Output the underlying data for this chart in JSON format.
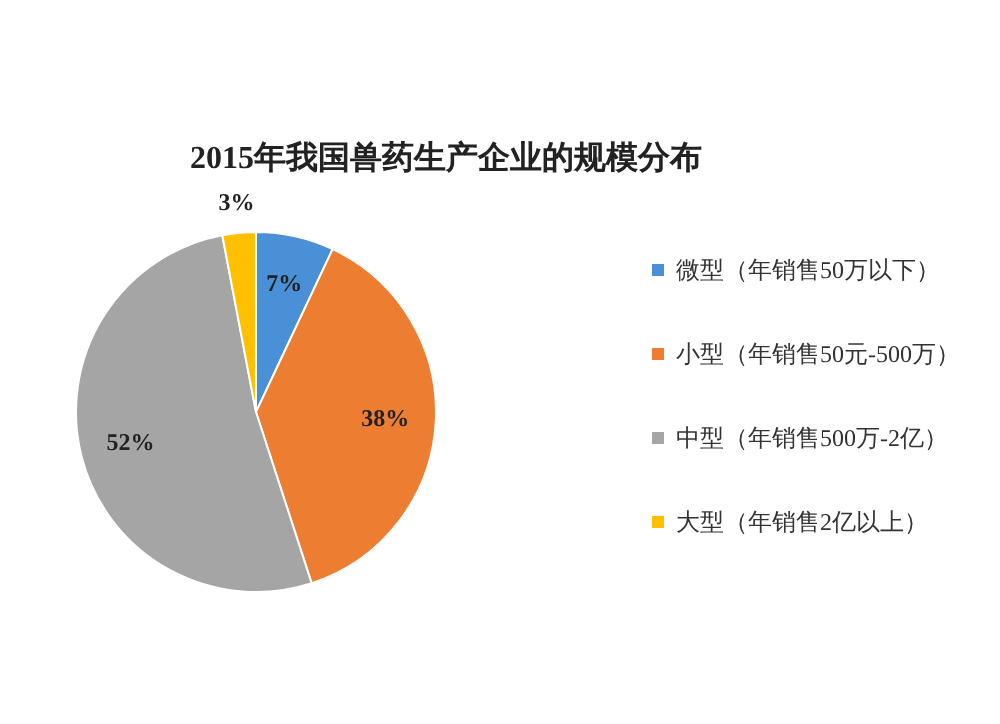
{
  "chart_data": {
    "type": "pie",
    "title": "2015年我国兽药生产企业的规模分布",
    "categories": [
      "微型（年销售50万以下）",
      "小型（年销售50元-500万）",
      "中型（年销售500万-2亿）",
      "大型（年销售2亿以上）"
    ],
    "values": [
      7,
      38,
      52,
      3
    ],
    "value_labels": [
      "7%",
      "38%",
      "52%",
      "3%"
    ],
    "colors": [
      "#4a90d6",
      "#ed7d31",
      "#a5a5a5",
      "#ffc000"
    ],
    "legend": "right"
  }
}
